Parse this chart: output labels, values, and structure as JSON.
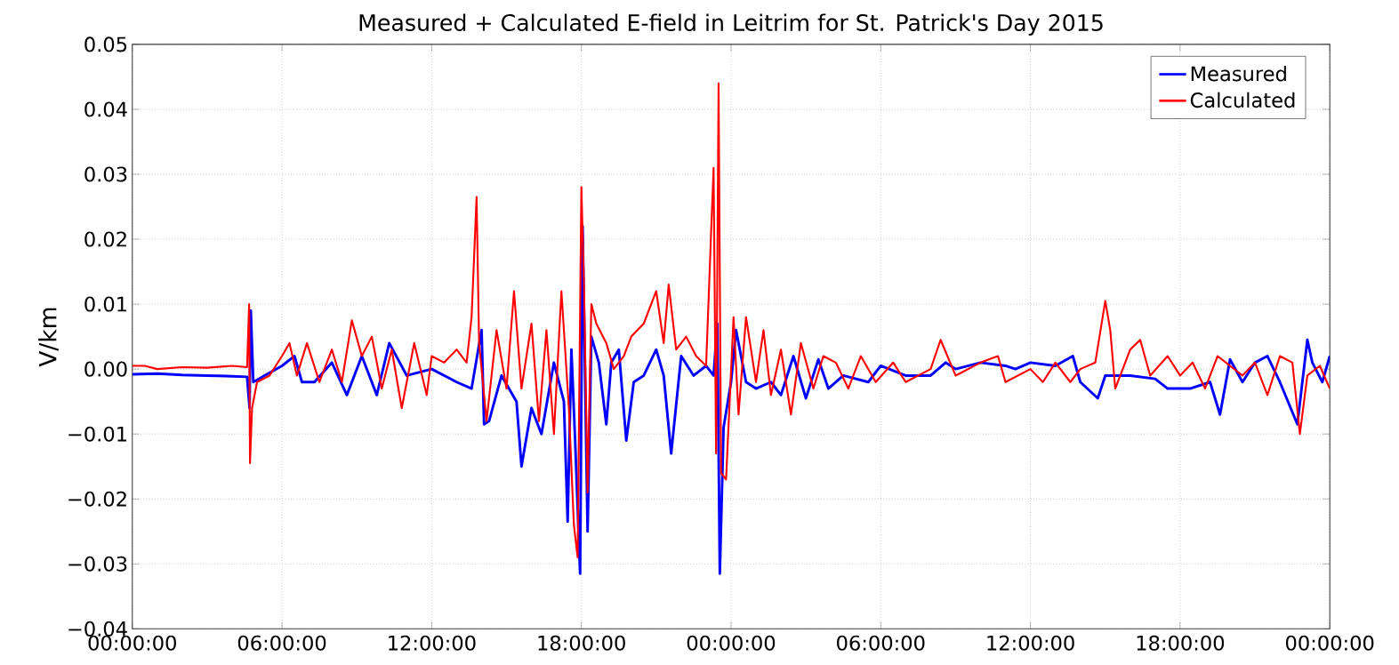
{
  "chart_data": {
    "type": "line",
    "title": "Measured + Calculated E-field in Leitrim for St. Patrick's Day 2015",
    "ylabel": "V/km",
    "xlim": [
      "2015-03-17T00:00",
      "2015-03-19T00:00"
    ],
    "ylim": [
      -0.04,
      0.05
    ],
    "xticks": [
      {
        "value": "2015-03-17T00:00",
        "label": "00:00:00"
      },
      {
        "value": "2015-03-17T06:00",
        "label": "06:00:00"
      },
      {
        "value": "2015-03-17T12:00",
        "label": "12:00:00"
      },
      {
        "value": "2015-03-17T18:00",
        "label": "18:00:00"
      },
      {
        "value": "2015-03-18T00:00",
        "label": "00:00:00"
      },
      {
        "value": "2015-03-18T06:00",
        "label": "06:00:00"
      },
      {
        "value": "2015-03-18T12:00",
        "label": "12:00:00"
      },
      {
        "value": "2015-03-18T18:00",
        "label": "18:00:00"
      },
      {
        "value": "2015-03-19T00:00",
        "label": "00:00:00"
      }
    ],
    "yticks": [
      {
        "value": -0.04,
        "label": "−0.04"
      },
      {
        "value": -0.03,
        "label": "−0.03"
      },
      {
        "value": -0.02,
        "label": "−0.02"
      },
      {
        "value": -0.01,
        "label": "−0.01"
      },
      {
        "value": 0,
        "label": "0.00"
      },
      {
        "value": 0.01,
        "label": "0.01"
      },
      {
        "value": 0.02,
        "label": "0.02"
      },
      {
        "value": 0.03,
        "label": "0.03"
      },
      {
        "value": 0.04,
        "label": "0.04"
      },
      {
        "value": 0.05,
        "label": "0.05"
      }
    ],
    "grid": true,
    "legend": "top right",
    "marker": "none",
    "line_style": "solid",
    "series": [
      {
        "name": "Measured",
        "color": "#0000ff",
        "x": [
          "2015-03-17T00:00",
          "2015-03-17T01:00",
          "2015-03-17T02:00",
          "2015-03-17T03:00",
          "2015-03-17T04:00",
          "2015-03-17T04:36",
          "2015-03-17T04:42",
          "2015-03-17T04:45",
          "2015-03-17T04:51",
          "2015-03-17T05:18",
          "2015-03-17T06:00",
          "2015-03-17T06:30",
          "2015-03-17T06:48",
          "2015-03-17T07:18",
          "2015-03-17T08:00",
          "2015-03-17T08:36",
          "2015-03-17T09:12",
          "2015-03-17T09:48",
          "2015-03-17T10:18",
          "2015-03-17T11:00",
          "2015-03-17T12:00",
          "2015-03-17T13:00",
          "2015-03-17T13:36",
          "2015-03-17T14:00",
          "2015-03-17T14:06",
          "2015-03-17T14:18",
          "2015-03-17T14:48",
          "2015-03-17T15:24",
          "2015-03-17T15:36",
          "2015-03-17T16:00",
          "2015-03-17T16:24",
          "2015-03-17T16:54",
          "2015-03-17T17:18",
          "2015-03-17T17:27",
          "2015-03-17T17:36",
          "2015-03-17T17:45",
          "2015-03-17T17:57",
          "2015-03-17T18:03",
          "2015-03-17T18:15",
          "2015-03-17T18:24",
          "2015-03-17T18:42",
          "2015-03-17T19:00",
          "2015-03-17T19:12",
          "2015-03-17T19:30",
          "2015-03-17T19:48",
          "2015-03-17T20:06",
          "2015-03-17T20:30",
          "2015-03-17T21:00",
          "2015-03-17T21:18",
          "2015-03-17T21:36",
          "2015-03-17T22:00",
          "2015-03-17T22:30",
          "2015-03-17T23:00",
          "2015-03-17T23:18",
          "2015-03-17T23:27",
          "2015-03-17T23:33",
          "2015-03-17T23:42",
          "2015-03-18T00:00",
          "2015-03-18T00:12",
          "2015-03-18T00:36",
          "2015-03-18T01:00",
          "2015-03-18T01:36",
          "2015-03-18T02:00",
          "2015-03-18T02:30",
          "2015-03-18T03:00",
          "2015-03-18T03:30",
          "2015-03-18T03:54",
          "2015-03-18T04:30",
          "2015-03-18T05:30",
          "2015-03-18T06:00",
          "2015-03-18T07:00",
          "2015-03-18T08:00",
          "2015-03-18T08:36",
          "2015-03-18T09:00",
          "2015-03-18T10:00",
          "2015-03-18T11:00",
          "2015-03-18T11:24",
          "2015-03-18T12:00",
          "2015-03-18T13:00",
          "2015-03-18T13:42",
          "2015-03-18T14:00",
          "2015-03-18T14:42",
          "2015-03-18T15:00",
          "2015-03-18T16:00",
          "2015-03-18T17:00",
          "2015-03-18T17:30",
          "2015-03-18T18:24",
          "2015-03-18T19:12",
          "2015-03-18T19:36",
          "2015-03-18T20:00",
          "2015-03-18T20:30",
          "2015-03-18T21:00",
          "2015-03-18T21:30",
          "2015-03-18T22:00",
          "2015-03-18T22:42",
          "2015-03-18T23:06",
          "2015-03-18T23:18",
          "2015-03-18T23:42",
          "2015-03-19T00:00"
        ],
        "values": [
          -0.0008,
          -0.0007,
          -0.0009,
          -0.001,
          -0.0011,
          -0.0012,
          -0.006,
          0.009,
          -0.002,
          -0.001,
          0.0005,
          0.002,
          -0.002,
          -0.002,
          0.001,
          -0.004,
          0.002,
          -0.004,
          0.004,
          -0.001,
          0,
          -0.002,
          -0.003,
          0.006,
          -0.0085,
          -0.008,
          -0.001,
          -0.005,
          -0.015,
          -0.006,
          -0.01,
          0.001,
          -0.005,
          -0.0235,
          0.003,
          -0.011,
          -0.0315,
          0.022,
          -0.025,
          0.005,
          0.001,
          -0.0085,
          0.001,
          0.003,
          -0.011,
          -0.002,
          -0.001,
          0.003,
          -0.001,
          -0.013,
          0.002,
          -0.001,
          0.0005,
          -0.001,
          0.007,
          -0.0315,
          -0.009,
          -0.002,
          0.006,
          -0.002,
          -0.003,
          -0.002,
          -0.004,
          0.002,
          -0.0045,
          0.0015,
          -0.003,
          -0.001,
          -0.002,
          0.0005,
          -0.001,
          -0.001,
          0.001,
          0,
          0.001,
          0.0005,
          0,
          0.001,
          0.0005,
          0.002,
          -0.002,
          -0.0045,
          -0.001,
          -0.001,
          -0.0015,
          -0.003,
          -0.003,
          -0.002,
          -0.007,
          0.0015,
          -0.002,
          0.001,
          0.002,
          -0.002,
          -0.0085,
          0.0045,
          0.001,
          -0.002,
          0.002
        ]
      },
      {
        "name": "Calculated",
        "color": "#ff0000",
        "x": [
          "2015-03-17T00:00",
          "2015-03-17T00:30",
          "2015-03-17T01:00",
          "2015-03-17T02:00",
          "2015-03-17T03:00",
          "2015-03-17T04:00",
          "2015-03-17T04:36",
          "2015-03-17T04:41",
          "2015-03-17T04:43",
          "2015-03-17T04:48",
          "2015-03-17T05:00",
          "2015-03-17T05:30",
          "2015-03-17T06:00",
          "2015-03-17T06:18",
          "2015-03-17T06:36",
          "2015-03-17T07:00",
          "2015-03-17T07:30",
          "2015-03-17T08:00",
          "2015-03-17T08:24",
          "2015-03-17T08:48",
          "2015-03-17T09:12",
          "2015-03-17T09:36",
          "2015-03-17T10:00",
          "2015-03-17T10:24",
          "2015-03-17T10:48",
          "2015-03-17T11:18",
          "2015-03-17T11:48",
          "2015-03-17T12:00",
          "2015-03-17T12:30",
          "2015-03-17T13:00",
          "2015-03-17T13:24",
          "2015-03-17T13:36",
          "2015-03-17T13:48",
          "2015-03-17T13:54",
          "2015-03-17T14:12",
          "2015-03-17T14:36",
          "2015-03-17T15:00",
          "2015-03-17T15:18",
          "2015-03-17T15:36",
          "2015-03-17T16:00",
          "2015-03-17T16:18",
          "2015-03-17T16:36",
          "2015-03-17T16:54",
          "2015-03-17T17:12",
          "2015-03-17T17:30",
          "2015-03-17T17:42",
          "2015-03-17T17:51",
          "2015-03-17T18:00",
          "2015-03-17T18:06",
          "2015-03-17T18:15",
          "2015-03-17T18:24",
          "2015-03-17T18:36",
          "2015-03-17T19:00",
          "2015-03-17T19:18",
          "2015-03-17T19:42",
          "2015-03-17T20:00",
          "2015-03-17T20:30",
          "2015-03-17T21:00",
          "2015-03-17T21:18",
          "2015-03-17T21:30",
          "2015-03-17T21:48",
          "2015-03-17T22:12",
          "2015-03-17T22:36",
          "2015-03-17T23:00",
          "2015-03-17T23:12",
          "2015-03-17T23:18",
          "2015-03-17T23:24",
          "2015-03-17T23:30",
          "2015-03-17T23:36",
          "2015-03-17T23:48",
          "2015-03-18T00:06",
          "2015-03-18T00:18",
          "2015-03-18T00:36",
          "2015-03-18T01:00",
          "2015-03-18T01:18",
          "2015-03-18T01:36",
          "2015-03-18T02:00",
          "2015-03-18T02:24",
          "2015-03-18T02:48",
          "2015-03-18T03:18",
          "2015-03-18T03:42",
          "2015-03-18T04:12",
          "2015-03-18T04:42",
          "2015-03-18T05:12",
          "2015-03-18T05:48",
          "2015-03-18T06:30",
          "2015-03-18T07:00",
          "2015-03-18T08:00",
          "2015-03-18T08:24",
          "2015-03-18T09:00",
          "2015-03-18T10:00",
          "2015-03-18T10:42",
          "2015-03-18T11:00",
          "2015-03-18T12:00",
          "2015-03-18T12:30",
          "2015-03-18T13:00",
          "2015-03-18T13:36",
          "2015-03-18T14:00",
          "2015-03-18T14:36",
          "2015-03-18T15:00",
          "2015-03-18T15:12",
          "2015-03-18T15:24",
          "2015-03-18T16:00",
          "2015-03-18T16:24",
          "2015-03-18T16:48",
          "2015-03-18T17:30",
          "2015-03-18T18:00",
          "2015-03-18T18:30",
          "2015-03-18T19:00",
          "2015-03-18T19:30",
          "2015-03-18T20:30",
          "2015-03-18T21:00",
          "2015-03-18T21:30",
          "2015-03-18T22:00",
          "2015-03-18T22:30",
          "2015-03-18T22:48",
          "2015-03-18T23:06",
          "2015-03-18T23:36",
          "2015-03-19T00:00"
        ],
        "values": [
          0.0005,
          0.0005,
          0,
          0.0003,
          0.0002,
          0.0005,
          0.0003,
          0.01,
          -0.0145,
          -0.006,
          -0.002,
          -0.001,
          0.002,
          0.004,
          -0.001,
          0.004,
          -0.002,
          0.003,
          -0.002,
          0.0075,
          0.002,
          0.005,
          -0.003,
          0.003,
          -0.006,
          0.004,
          -0.004,
          0.002,
          0.001,
          0.003,
          0.001,
          0.008,
          0.0265,
          0.004,
          -0.008,
          0.006,
          -0.003,
          0.012,
          -0.003,
          0.007,
          -0.008,
          0.006,
          -0.01,
          0.012,
          -0.006,
          -0.024,
          -0.029,
          0.028,
          0.014,
          -0.019,
          0.01,
          0.007,
          0.004,
          0,
          0.002,
          0.005,
          0.007,
          0.012,
          0.004,
          0.013,
          0.003,
          0.005,
          0.002,
          0.0005,
          0.021,
          0.031,
          -0.013,
          0.044,
          -0.016,
          -0.017,
          0.008,
          -0.007,
          0.008,
          -0.002,
          0.006,
          -0.004,
          0.003,
          -0.007,
          0.004,
          -0.003,
          0.002,
          0.001,
          -0.003,
          0.002,
          -0.002,
          0.001,
          -0.002,
          0,
          0.0045,
          -0.001,
          0.001,
          0.002,
          -0.002,
          0,
          -0.002,
          0.001,
          -0.002,
          0,
          0.001,
          0.0105,
          0.006,
          -0.003,
          0.003,
          0.0045,
          -0.001,
          0.002,
          -0.001,
          0.001,
          -0.003,
          0.002,
          -0.001,
          0.001,
          -0.004,
          0.002,
          0.001,
          -0.01,
          -0.001,
          0.0005,
          -0.003
        ]
      }
    ]
  }
}
